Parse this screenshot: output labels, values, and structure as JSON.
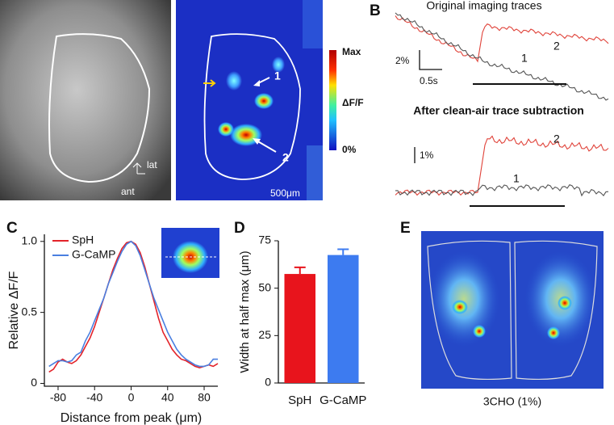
{
  "panels": {
    "a": {
      "label": "A",
      "colorbar_max": "Max",
      "colorbar_mid": "ΔF/F",
      "colorbar_min": "0%",
      "arrow_1": "1",
      "arrow_2": "2",
      "axis_lat": "lat",
      "axis_ant": "ant",
      "scale": "500μm"
    },
    "b": {
      "label": "B",
      "title_top": "Original imaging traces",
      "scale_top_y": "2%",
      "scale_x": "0.5s",
      "trace_1_top": "1",
      "trace_2_top": "2",
      "title_bottom": "After clean-air trace subtraction",
      "scale_bottom_y": "1%",
      "trace_1_bottom": "1",
      "trace_2_bottom": "2"
    },
    "c": {
      "label": "C"
    },
    "d": {
      "label": "D"
    },
    "e": {
      "label": "E",
      "caption": "3CHO (1%)"
    }
  },
  "chart_data": [
    {
      "type": "line",
      "xlabel": "Distance from peak (μm)",
      "ylabel": "Relative ΔF/F",
      "x": [
        -90,
        -85,
        -80,
        -75,
        -70,
        -65,
        -60,
        -55,
        -50,
        -45,
        -40,
        -35,
        -30,
        -25,
        -20,
        -15,
        -10,
        -5,
        0,
        5,
        10,
        15,
        20,
        25,
        30,
        35,
        40,
        45,
        50,
        55,
        60,
        65,
        70,
        75,
        80,
        85,
        90,
        95
      ],
      "series": [
        {
          "name": "SpH",
          "color": "#e3232a",
          "values": [
            0.08,
            0.1,
            0.15,
            0.17,
            0.15,
            0.14,
            0.16,
            0.2,
            0.26,
            0.32,
            0.4,
            0.5,
            0.6,
            0.7,
            0.8,
            0.88,
            0.95,
            0.99,
            1.0,
            0.98,
            0.92,
            0.82,
            0.7,
            0.58,
            0.46,
            0.36,
            0.3,
            0.24,
            0.2,
            0.17,
            0.16,
            0.14,
            0.12,
            0.11,
            0.12,
            0.13,
            0.12,
            0.14
          ]
        },
        {
          "name": "G-CaMP",
          "color": "#4a7fe0",
          "values": [
            0.12,
            0.14,
            0.16,
            0.16,
            0.15,
            0.16,
            0.2,
            0.22,
            0.3,
            0.36,
            0.44,
            0.52,
            0.6,
            0.7,
            0.78,
            0.86,
            0.93,
            0.98,
            1.0,
            0.97,
            0.9,
            0.8,
            0.7,
            0.6,
            0.52,
            0.44,
            0.36,
            0.3,
            0.24,
            0.2,
            0.17,
            0.15,
            0.13,
            0.12,
            0.12,
            0.13,
            0.17,
            0.17
          ]
        }
      ],
      "xlim": [
        -95,
        95
      ],
      "xticks": [
        -80,
        -40,
        0,
        40,
        80
      ],
      "ylim": [
        -0.02,
        1.05
      ],
      "yticks": [
        0,
        0.5,
        {
          "value": 1,
          "label": "1.0"
        }
      ]
    },
    {
      "type": "bar",
      "ylabel": "Width at half max (μm)",
      "categories": [
        "SpH",
        "G-CaMP"
      ],
      "values": [
        57.5,
        67.5
      ],
      "errors": [
        3.5,
        3
      ],
      "colors": [
        "#e8141c",
        "#3d7bf0"
      ],
      "ylim": [
        0,
        75
      ],
      "yticks": [
        0,
        25,
        50,
        75
      ]
    }
  ]
}
